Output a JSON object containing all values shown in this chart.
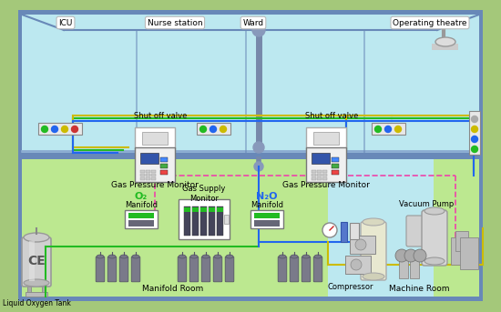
{
  "bg_outer": "#a4c87a",
  "bg_upper": "#bce8f0",
  "bg_lower_green": "#bce890",
  "bg_lower_blue": "#bce8f0",
  "wall_color": "#6888b8",
  "floor_color": "#8aaad0",
  "labels": {
    "icu": "ICU",
    "nurse": "Nurse station",
    "ward": "Ward",
    "theatre": "Operating theatre",
    "shut_off": "Shut off valve",
    "gas_pressure": "Gas Pressure Monitor",
    "manifold_o2": "Manifold",
    "o2": "O₂",
    "manifold_n2o": "Manifold",
    "n2o": "N₂O",
    "gas_supply": "Gas Supply\nMonitor",
    "compressor": "Compressor",
    "vacuum_pump": "Vacuum Pump",
    "manifold_room": "Manifold Room",
    "machine_room": "Machine Room",
    "liquid_oxygen": "Liquid Oxygen Tank",
    "ce": "CE"
  },
  "lc": {
    "green": "#22bb22",
    "blue": "#2266ee",
    "yellow": "#ccbb00",
    "pink": "#ee44aa",
    "gray": "#888888",
    "cyan": "#44cccc"
  }
}
